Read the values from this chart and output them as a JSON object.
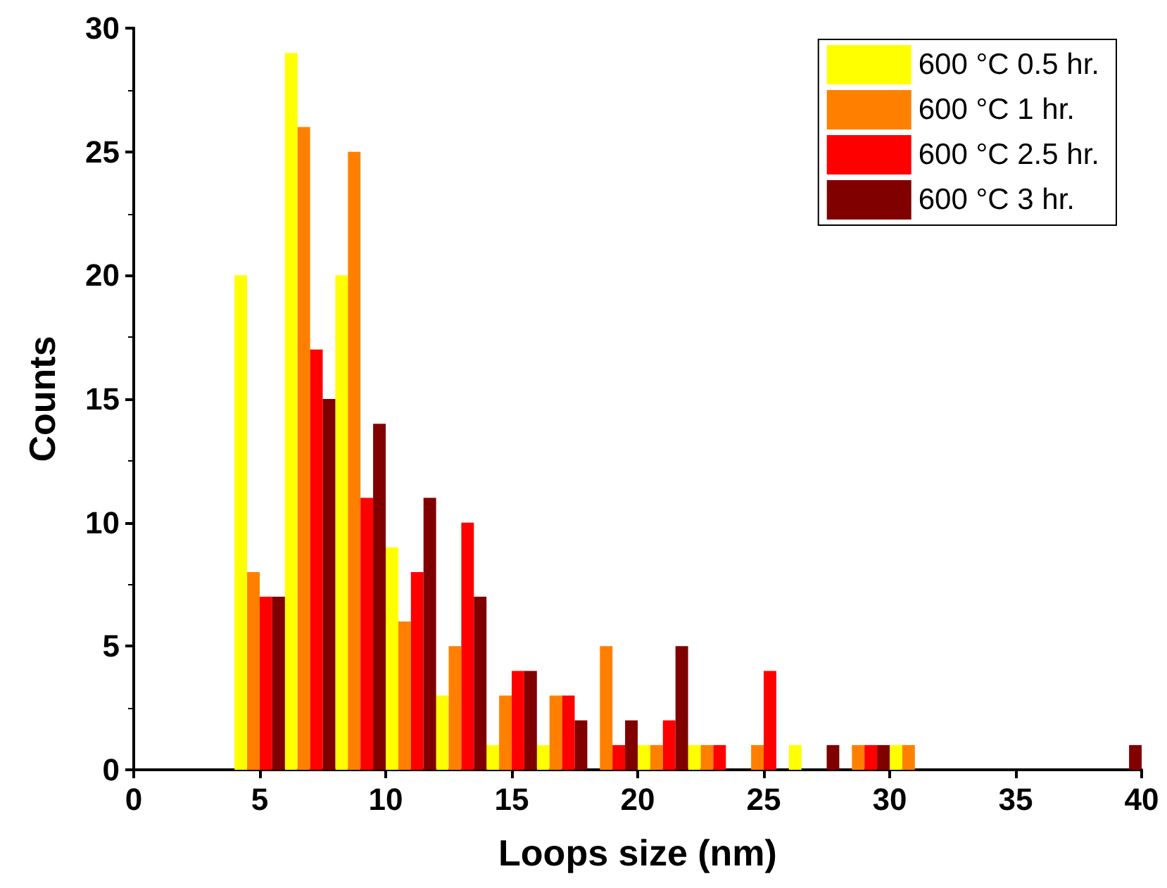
{
  "chart_data": {
    "type": "histogram",
    "xlabel": "Loops size (nm)",
    "ylabel": "Counts",
    "bins": [
      4,
      6,
      8,
      10,
      12,
      14,
      16,
      18,
      20,
      22,
      24,
      26,
      28,
      30,
      32,
      34,
      36,
      38,
      40
    ],
    "series": [
      {
        "name": "600 °C 0.5 hr.",
        "color": "#ffff00",
        "values": [
          20,
          29,
          20,
          9,
          3,
          1,
          1,
          0,
          1,
          1,
          0,
          1,
          0,
          1,
          0,
          0,
          0,
          0
        ]
      },
      {
        "name": "600 °C 1 hr.",
        "color": "#ff8000",
        "values": [
          8,
          26,
          25,
          6,
          5,
          3,
          3,
          5,
          1,
          1,
          1,
          0,
          1,
          1,
          0,
          0,
          0,
          0
        ]
      },
      {
        "name": "600 °C 2.5 hr.",
        "color": "#ff0000",
        "values": [
          7,
          17,
          11,
          8,
          10,
          4,
          3,
          1,
          2,
          1,
          4,
          0,
          1,
          0,
          0,
          0,
          0,
          0
        ]
      },
      {
        "name": "600 °C 3 hr.",
        "color": "#800000",
        "values": [
          7,
          15,
          14,
          11,
          7,
          4,
          2,
          2,
          5,
          0,
          0,
          1,
          1,
          0,
          0,
          0,
          0,
          1
        ]
      }
    ],
    "xlim": [
      0,
      40
    ],
    "xticks": [
      0,
      5,
      10,
      15,
      20,
      25,
      30,
      35,
      40
    ],
    "ylim": [
      0,
      30
    ],
    "yticks": [
      0,
      5,
      10,
      15,
      20,
      25,
      30
    ],
    "grid": false,
    "legend": "top right"
  }
}
